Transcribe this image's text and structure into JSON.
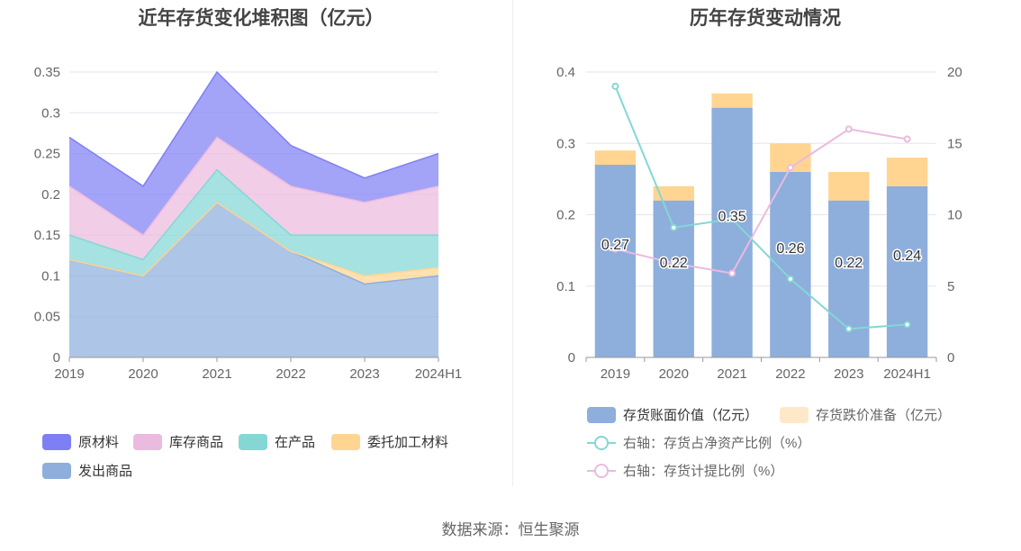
{
  "source": "数据来源：恒生聚源",
  "chart_data": [
    {
      "type": "area",
      "stacked": true,
      "title": "近年存货变化堆积图（亿元）",
      "categories": [
        "2019",
        "2020",
        "2021",
        "2022",
        "2023",
        "2024H1"
      ],
      "ylim": [
        0,
        0.35
      ],
      "yticks": [
        "0",
        "0.05",
        "0.1",
        "0.15",
        "0.2",
        "0.25",
        "0.3",
        "0.35"
      ],
      "grid": true,
      "legend_position": "bottom",
      "series": [
        {
          "name": "发出商品",
          "color": "#8eaedc",
          "values": [
            0.12,
            0.1,
            0.19,
            0.13,
            0.09,
            0.1
          ]
        },
        {
          "name": "委托加工材料",
          "color": "#ffd591",
          "values": [
            0.0,
            0.0,
            0.0,
            0.0,
            0.01,
            0.01
          ]
        },
        {
          "name": "在产品",
          "color": "#84d7d5",
          "values": [
            0.03,
            0.02,
            0.04,
            0.02,
            0.05,
            0.04
          ]
        },
        {
          "name": "库存商品",
          "color": "#ebbadf",
          "values": [
            0.06,
            0.03,
            0.04,
            0.06,
            0.04,
            0.06
          ]
        },
        {
          "name": "原材料",
          "color": "#7f7ff5",
          "values": [
            0.06,
            0.06,
            0.08,
            0.05,
            0.03,
            0.04
          ]
        }
      ],
      "legend_order": [
        "原材料",
        "库存商品",
        "在产品",
        "委托加工材料",
        "发出商品"
      ]
    },
    {
      "type": "bar",
      "stacked": true,
      "title": "历年存货变动情况",
      "categories": [
        "2019",
        "2020",
        "2021",
        "2022",
        "2023",
        "2024H1"
      ],
      "ylim": [
        0,
        0.4
      ],
      "yticks": [
        "0",
        "0.1",
        "0.2",
        "0.3",
        "0.4"
      ],
      "y2lim": [
        0,
        20
      ],
      "y2ticks": [
        "0",
        "5",
        "10",
        "15",
        "20"
      ],
      "grid": true,
      "legend_position": "bottom",
      "series": [
        {
          "name": "存货账面价值（亿元）",
          "type": "bar",
          "color": "#8eaedc",
          "values": [
            0.27,
            0.22,
            0.35,
            0.26,
            0.22,
            0.24
          ],
          "labels": [
            "0.27",
            "0.22",
            "0.35",
            "0.26",
            "0.22",
            "0.24"
          ]
        },
        {
          "name": "存货跌价准备（亿元）",
          "type": "bar",
          "color": "#ffd591",
          "values": [
            0.02,
            0.02,
            0.02,
            0.04,
            0.04,
            0.04
          ]
        },
        {
          "name": "右轴：存货占净资产比例（%）",
          "type": "line",
          "axis": "right",
          "color": "#84d7d5",
          "values": [
            19.0,
            9.1,
            9.7,
            5.5,
            2.0,
            2.3
          ]
        },
        {
          "name": "右轴：存货计提比例（%）",
          "type": "line",
          "axis": "right",
          "color": "#ebbadf",
          "values": [
            7.6,
            6.6,
            5.9,
            13.3,
            16.0,
            15.3
          ]
        }
      ]
    }
  ]
}
